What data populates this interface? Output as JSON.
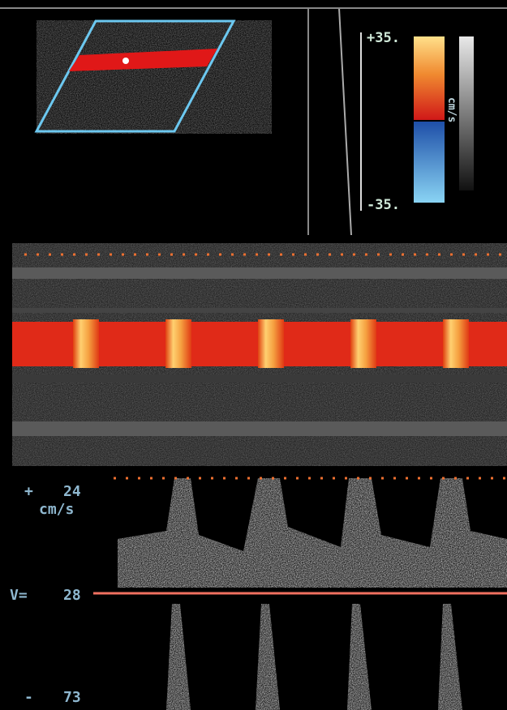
{
  "color_scale": {
    "top": "+35.",
    "bottom": "-35.",
    "unit": "cm/s"
  },
  "doppler": {
    "top_sign": "+",
    "top_value": "24",
    "unit": "cm/s",
    "velocity_label": "V=",
    "velocity_value": "28",
    "bottom_sign": "-",
    "bottom_value": "73"
  }
}
